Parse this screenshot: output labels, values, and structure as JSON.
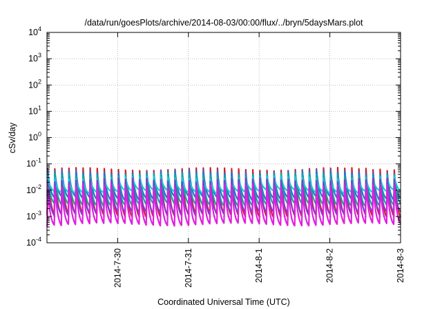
{
  "chart_data": {
    "type": "line",
    "title": "/data/run/goesPlots/archive/2014-08-03/00:00/flux/../bryn/5daysMars.plot",
    "xlabel": "Coordinated Universal Time (UTC)",
    "ylabel": "cSv/day",
    "yscale": "log",
    "ylim": [
      0.0001,
      10000
    ],
    "y_ticks": [
      {
        "base": "10",
        "exp": "-4"
      },
      {
        "base": "10",
        "exp": "-3"
      },
      {
        "base": "10",
        "exp": "-2"
      },
      {
        "base": "10",
        "exp": "-1"
      },
      {
        "base": "10",
        "exp": "0"
      },
      {
        "base": "10",
        "exp": "1"
      },
      {
        "base": "10",
        "exp": "2"
      },
      {
        "base": "10",
        "exp": "3"
      },
      {
        "base": "10",
        "exp": "4"
      }
    ],
    "xlim": [
      "2014-07-29 00:00",
      "2014-08-03 00:00"
    ],
    "x_ticks": [
      "2014-7-30",
      "2014-7-31",
      "2014-8-1",
      "2014-8-2",
      "2014-8-3"
    ],
    "grid": true,
    "legend": "none",
    "pattern": {
      "period_hours": 2.4,
      "peak_hour_offset": 0.1,
      "shape": "sawtooth: rapid rise to peak then roughly exponential decay"
    },
    "series": [
      {
        "color": "#d0212d",
        "peak": 0.065,
        "trough": 0.0011
      },
      {
        "color": "#2a6ed1",
        "peak": 0.05,
        "trough": 0.005
      },
      {
        "color": "#17a39a",
        "peak": 0.04,
        "trough": 0.0028
      },
      {
        "color": "#19c7d6",
        "peak": 0.03,
        "trough": 0.009
      },
      {
        "color": "#7b3fc4",
        "peak": 0.025,
        "trough": 0.0013
      },
      {
        "color": "#e11ee0",
        "peak": 0.015,
        "trough": 0.0005
      }
    ]
  }
}
